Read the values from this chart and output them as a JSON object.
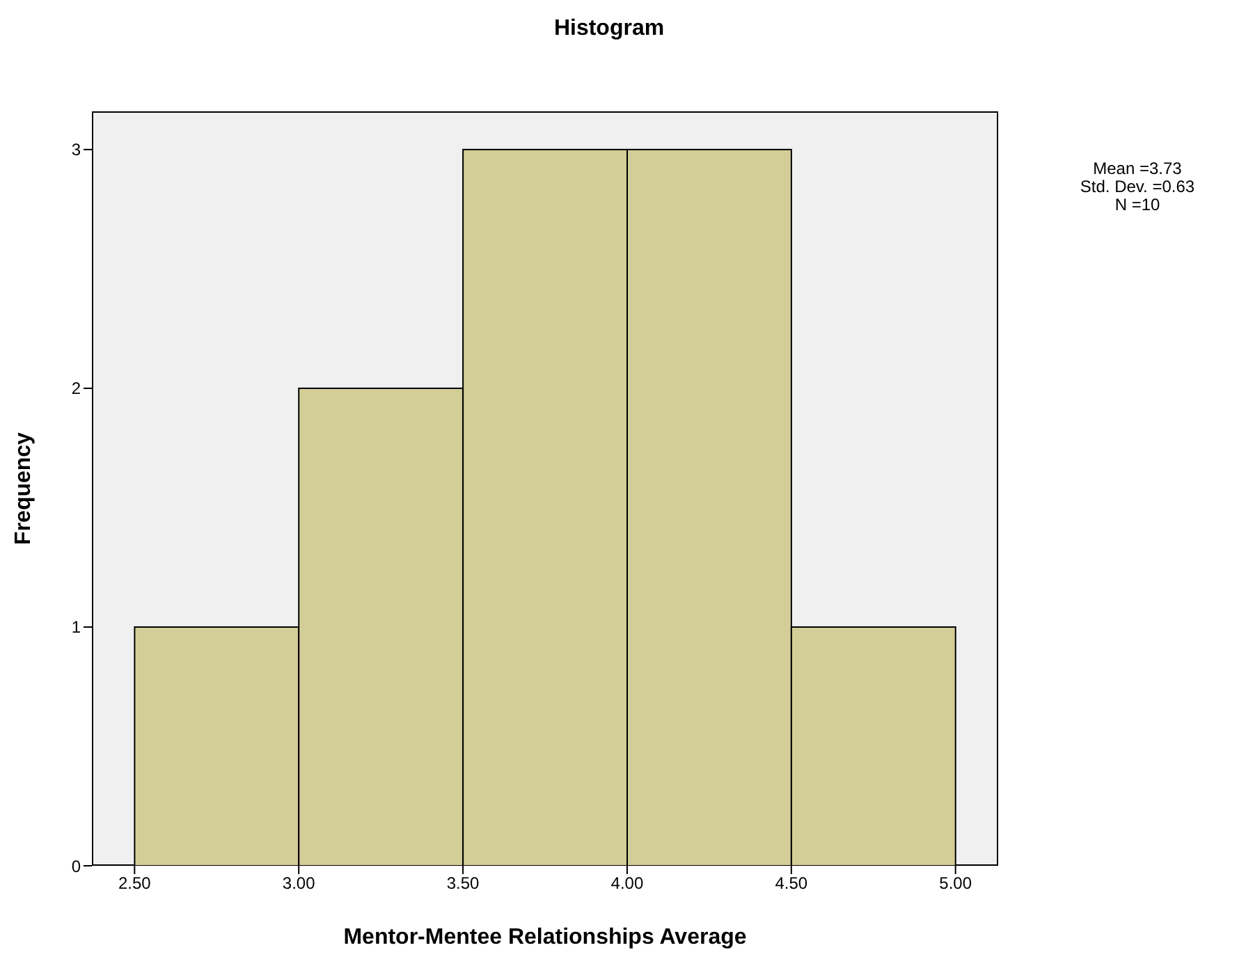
{
  "chart_data": {
    "type": "histogram",
    "title": "Histogram",
    "xlabel": "Mentor-Mentee Relationships Average",
    "ylabel": "Frequency",
    "bins": [
      2.5,
      3.0,
      3.5,
      4.0,
      4.5,
      5.0
    ],
    "values": [
      1,
      2,
      3,
      3,
      1
    ],
    "color": "#d3ce97",
    "xlim": [
      2.37,
      5.13
    ],
    "xticks": [
      {
        "value": 2.5,
        "label": "2.50"
      },
      {
        "value": 3,
        "label": "3.00"
      },
      {
        "value": 3.5,
        "label": "3.50"
      },
      {
        "value": 4,
        "label": "4.00"
      },
      {
        "value": 4.5,
        "label": "4.50"
      },
      {
        "value": 5,
        "label": "5.00"
      }
    ],
    "ylim": [
      0,
      3.16
    ],
    "yticks": [
      0,
      1,
      2,
      3
    ],
    "grid": false,
    "annotations": [
      "Mean =3.73",
      "Std. Dev. =0.63",
      "N =10"
    ]
  }
}
